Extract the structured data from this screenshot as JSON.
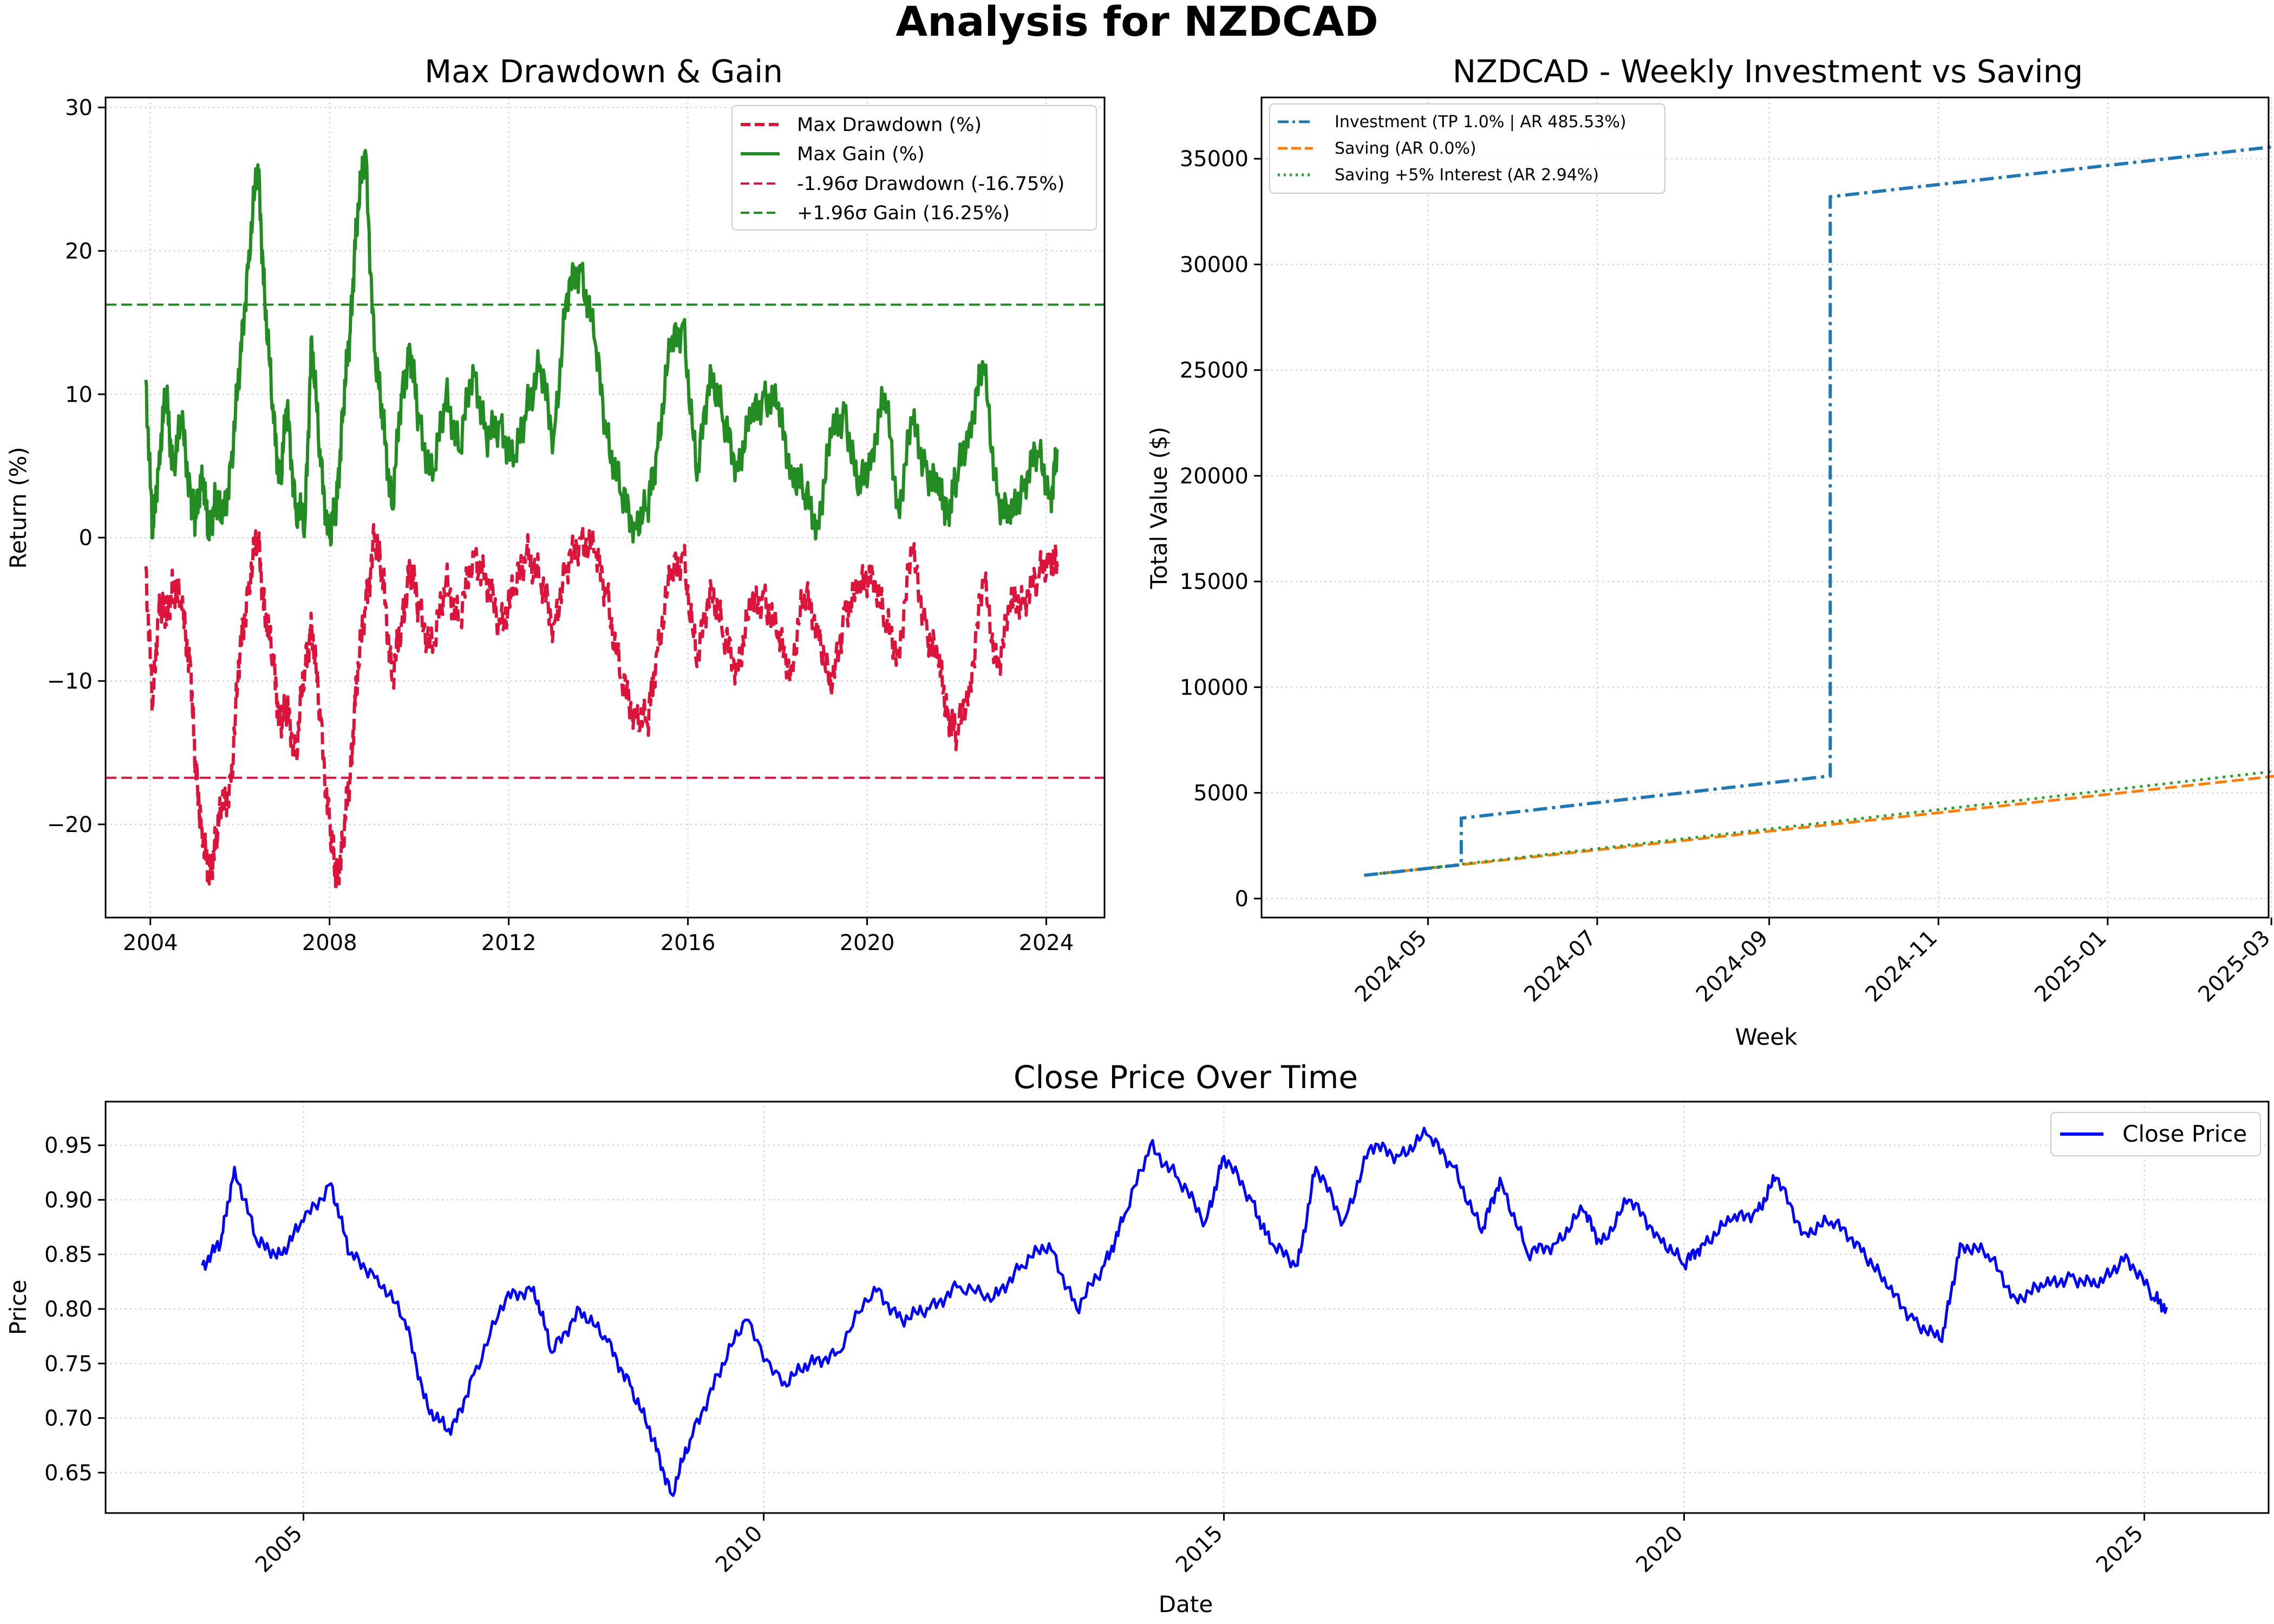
{
  "figure": {
    "suptitle": "Analysis for NZDCAD"
  },
  "colors": {
    "drawdown": "#dc143c",
    "gain": "#228b22",
    "investment": "#1f77b4",
    "saving": "#ff7f0e",
    "saving_interest": "#2ca02c",
    "close": "#0000ff",
    "grid": "#cccccc"
  },
  "chart_data": [
    {
      "id": "drawdown",
      "type": "line",
      "title": "Max Drawdown & Gain",
      "xlabel": "",
      "ylabel": "Return (%)",
      "xlim": [
        2003.0,
        2025.3
      ],
      "ylim": [
        -26.5,
        30.7
      ],
      "xticks": [
        2004,
        2008,
        2012,
        2016,
        2020,
        2024
      ],
      "xtick_labels": [
        "2004",
        "2008",
        "2012",
        "2016",
        "2020",
        "2024"
      ],
      "yticks": [
        -20,
        -10,
        0,
        10,
        20,
        30
      ],
      "ytick_labels": [
        "−20",
        "−10",
        "0",
        "10",
        "20",
        "30"
      ],
      "grid": true,
      "legend_position": "top-right",
      "series": [
        {
          "name": "Max Drawdown (%)",
          "style": "dashed",
          "x": [
            2003.9,
            2004.05,
            2004.2,
            2004.35,
            2004.5,
            2004.7,
            2004.9,
            2005.0,
            2005.15,
            2005.3,
            2005.45,
            2005.6,
            2005.8,
            2006.0,
            2006.2,
            2006.4,
            2006.55,
            2006.75,
            2006.9,
            2007.05,
            2007.25,
            2007.45,
            2007.6,
            2007.8,
            2008.0,
            2008.15,
            2008.3,
            2008.45,
            2008.6,
            2008.8,
            2009.0,
            2009.2,
            2009.4,
            2009.6,
            2009.8,
            2010.0,
            2010.3,
            2010.6,
            2010.9,
            2011.2,
            2011.5,
            2011.8,
            2012.1,
            2012.4,
            2012.7,
            2013.0,
            2013.3,
            2013.6,
            2013.9,
            2014.2,
            2014.5,
            2014.8,
            2015.1,
            2015.3,
            2015.6,
            2015.9,
            2016.2,
            2016.5,
            2016.8,
            2017.1,
            2017.4,
            2017.7,
            2018.0,
            2018.3,
            2018.6,
            2018.9,
            2019.2,
            2019.5,
            2019.8,
            2020.1,
            2020.4,
            2020.7,
            2021.0,
            2021.3,
            2021.6,
            2021.8,
            2022.0,
            2022.3,
            2022.6,
            2022.9,
            2023.2,
            2023.5,
            2023.8,
            2024.1,
            2024.25
          ],
          "values": [
            -2,
            -12,
            -4,
            -6,
            -3,
            -5,
            -9,
            -16,
            -20,
            -24,
            -21,
            -19,
            -17,
            -8,
            -3,
            0,
            -5,
            -9,
            -13,
            -12,
            -15,
            -9,
            -6,
            -13,
            -20,
            -24,
            -21,
            -17,
            -10,
            -5,
            0,
            -3,
            -10,
            -6,
            -2,
            -5,
            -8,
            -3,
            -6,
            -1,
            -3,
            -6,
            -4,
            -1,
            -3,
            -6,
            -2,
            0,
            -1,
            -4,
            -10,
            -12,
            -13,
            -8,
            -3,
            -1,
            -9,
            -3,
            -7,
            -9,
            -5,
            -4,
            -7,
            -9,
            -4,
            -6,
            -11,
            -5,
            -4,
            -2,
            -6,
            -8,
            -1,
            -6,
            -9,
            -12,
            -14,
            -10,
            -3,
            -9,
            -5,
            -4,
            -3,
            -1,
            -2
          ]
        },
        {
          "name": "Max Gain (%)",
          "style": "solid",
          "x": [
            2003.9,
            2004.05,
            2004.2,
            2004.35,
            2004.5,
            2004.7,
            2004.9,
            2005.0,
            2005.15,
            2005.3,
            2005.45,
            2005.6,
            2005.8,
            2006.0,
            2006.2,
            2006.4,
            2006.55,
            2006.75,
            2006.9,
            2007.05,
            2007.25,
            2007.45,
            2007.6,
            2007.8,
            2008.0,
            2008.15,
            2008.3,
            2008.45,
            2008.6,
            2008.8,
            2009.0,
            2009.2,
            2009.4,
            2009.6,
            2009.8,
            2010.0,
            2010.3,
            2010.6,
            2010.9,
            2011.2,
            2011.5,
            2011.8,
            2012.1,
            2012.4,
            2012.7,
            2013.0,
            2013.3,
            2013.6,
            2013.9,
            2014.2,
            2014.5,
            2014.8,
            2015.1,
            2015.3,
            2015.6,
            2015.9,
            2016.2,
            2016.5,
            2016.8,
            2017.1,
            2017.4,
            2017.7,
            2018.0,
            2018.3,
            2018.6,
            2018.9,
            2019.2,
            2019.5,
            2019.8,
            2020.1,
            2020.4,
            2020.7,
            2021.0,
            2021.3,
            2021.6,
            2021.8,
            2022.0,
            2022.3,
            2022.6,
            2022.9,
            2023.2,
            2023.5,
            2023.8,
            2024.1,
            2024.25
          ],
          "values": [
            11,
            0,
            6,
            10,
            5,
            8,
            3,
            1,
            5,
            0,
            3,
            1,
            5,
            12,
            20,
            26,
            17,
            8,
            4,
            9,
            2,
            1,
            14,
            5,
            0,
            2,
            9,
            14,
            22,
            27,
            13,
            8,
            2,
            10,
            13,
            8,
            4,
            10,
            6,
            12,
            7,
            8,
            5,
            9,
            12,
            7,
            17,
            19,
            14,
            7,
            3,
            1,
            2,
            6,
            13,
            15,
            4,
            12,
            8,
            5,
            8,
            10,
            9,
            5,
            3,
            1,
            7,
            9,
            3,
            6,
            10,
            2,
            8,
            5,
            3,
            2,
            4,
            8,
            12,
            3,
            1,
            4,
            6,
            3,
            6
          ]
        },
        {
          "name": "-1.96σ Drawdown (-16.75%)",
          "style": "hline",
          "y": -16.75
        },
        {
          "name": "+1.96σ Gain (16.25%)",
          "style": "hline",
          "y": 16.25
        }
      ]
    },
    {
      "id": "investment",
      "type": "line",
      "title": "NZDCAD - Weekly Investment vs Saving",
      "xlabel": "Week",
      "ylabel": "Total Value ($)",
      "xlim": [
        -30,
        333
      ],
      "ylim": [
        -900,
        37900
      ],
      "xticks": [
        30,
        91,
        153,
        214,
        275,
        334
      ],
      "xtick_labels": [
        "2024-05",
        "2024-07",
        "2024-09",
        "2024-11",
        "2025-01",
        "2025-03"
      ],
      "x_reference": "day offsets from 2024-04-01",
      "yticks": [
        0,
        5000,
        10000,
        15000,
        20000,
        25000,
        30000,
        35000
      ],
      "ytick_labels": [
        "0",
        "5000",
        "10000",
        "15000",
        "20000",
        "25000",
        "30000",
        "35000"
      ],
      "grid": true,
      "legend_position": "top-left",
      "series": [
        {
          "name": "Investment (TP 1.0% | AR 485.53%)",
          "style": "dashdot",
          "x": [
            7,
            42,
            42,
            175,
            175,
            357
          ],
          "values": [
            1100,
            1600,
            3800,
            5800,
            33200,
            35900
          ]
        },
        {
          "name": "Saving (AR 0.0%)",
          "style": "dashed",
          "x": [
            7,
            357
          ],
          "values": [
            1100,
            6100
          ]
        },
        {
          "name": "Saving +5% Interest (AR 2.94%)",
          "style": "dotted",
          "x": [
            7,
            357
          ],
          "values": [
            1100,
            6350
          ]
        }
      ]
    },
    {
      "id": "close",
      "type": "line",
      "title": "Close Price Over Time",
      "xlabel": "Date",
      "ylabel": "Price",
      "xlim": [
        2002.85,
        2026.35
      ],
      "ylim": [
        0.613,
        0.99
      ],
      "xticks": [
        2005,
        2010,
        2015,
        2020,
        2025
      ],
      "xtick_labels": [
        "2005",
        "2010",
        "2015",
        "2020",
        "2025"
      ],
      "yticks": [
        0.65,
        0.7,
        0.75,
        0.8,
        0.85,
        0.9,
        0.95
      ],
      "ytick_labels": [
        "0.65",
        "0.70",
        "0.75",
        "0.80",
        "0.85",
        "0.90",
        "0.95"
      ],
      "grid": true,
      "legend_position": "top-right",
      "series": [
        {
          "name": "Close Price",
          "style": "solid",
          "x": [
            2003.9,
            2004.1,
            2004.25,
            2004.5,
            2004.75,
            2005.0,
            2005.3,
            2005.5,
            2005.8,
            2006.1,
            2006.35,
            2006.6,
            2006.85,
            2007.2,
            2007.5,
            2007.7,
            2008.0,
            2008.3,
            2008.55,
            2008.8,
            2009.0,
            2009.2,
            2009.5,
            2009.8,
            2010.2,
            2010.5,
            2010.8,
            2011.2,
            2011.5,
            2011.8,
            2012.1,
            2012.5,
            2012.8,
            2013.1,
            2013.4,
            2013.7,
            2013.9,
            2014.2,
            2014.5,
            2014.8,
            2015.0,
            2015.3,
            2015.5,
            2015.8,
            2016.0,
            2016.3,
            2016.6,
            2016.9,
            2017.2,
            2017.5,
            2017.8,
            2018.0,
            2018.3,
            2018.6,
            2018.9,
            2019.1,
            2019.4,
            2019.7,
            2020.0,
            2020.2,
            2020.5,
            2020.8,
            2021.0,
            2021.3,
            2021.6,
            2021.9,
            2022.2,
            2022.5,
            2022.8,
            2023.0,
            2023.3,
            2023.6,
            2023.9,
            2024.2,
            2024.5,
            2024.8,
            2025.1,
            2025.25
          ],
          "values": [
            0.84,
            0.86,
            0.93,
            0.86,
            0.85,
            0.88,
            0.915,
            0.85,
            0.83,
            0.79,
            0.71,
            0.685,
            0.74,
            0.81,
            0.82,
            0.76,
            0.8,
            0.77,
            0.73,
            0.68,
            0.63,
            0.68,
            0.74,
            0.79,
            0.73,
            0.75,
            0.76,
            0.82,
            0.79,
            0.8,
            0.82,
            0.81,
            0.84,
            0.86,
            0.8,
            0.84,
            0.88,
            0.95,
            0.92,
            0.88,
            0.94,
            0.9,
            0.86,
            0.84,
            0.93,
            0.88,
            0.95,
            0.94,
            0.96,
            0.93,
            0.87,
            0.92,
            0.85,
            0.86,
            0.89,
            0.86,
            0.9,
            0.87,
            0.84,
            0.86,
            0.88,
            0.89,
            0.92,
            0.87,
            0.88,
            0.86,
            0.82,
            0.79,
            0.77,
            0.86,
            0.85,
            0.81,
            0.82,
            0.83,
            0.82,
            0.85,
            0.81,
            0.8
          ]
        }
      ]
    }
  ]
}
